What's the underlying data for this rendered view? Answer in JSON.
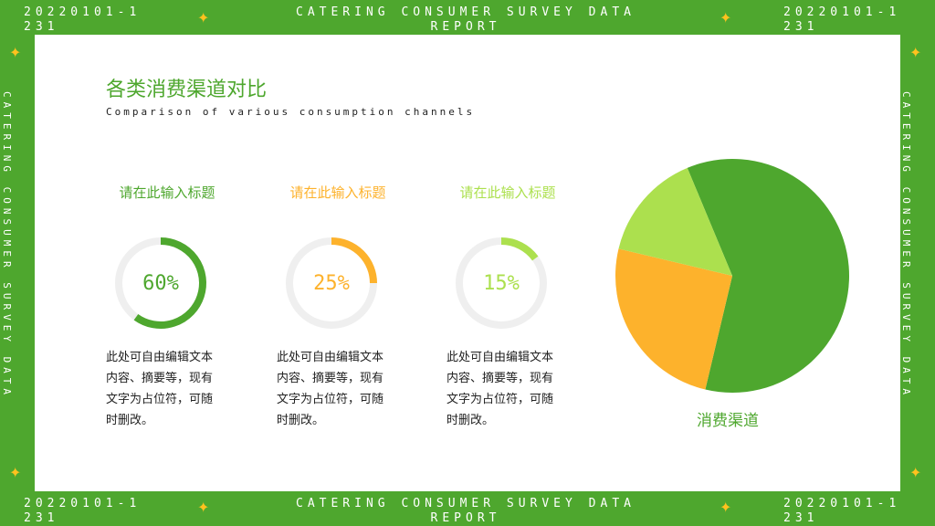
{
  "frame": {
    "date_range": "20220101-1231",
    "report_title": "CATERING CONSUMER SURVEY DATA REPORT",
    "side_text": "CATERING CONSUMER SURVEY DATA"
  },
  "header": {
    "title": "各类消费渠道对比",
    "subtitle": "Comparison of various consumption channels"
  },
  "cards": [
    {
      "title": "请在此输入标题",
      "percent_label": "60%",
      "value": 60,
      "color": "#4ea72e",
      "text": "此处可自由编辑文本内容、摘要等，现有文字为占位符，可随时删改。"
    },
    {
      "title": "请在此输入标题",
      "percent_label": "25%",
      "value": 25,
      "color": "#fdb22c",
      "text": "此处可自由编辑文本内容、摘要等，现有文字为占位符，可随时删改。"
    },
    {
      "title": "请在此输入标题",
      "percent_label": "15%",
      "value": 15,
      "color": "#ace04e",
      "text": "此处可自由编辑文本内容、摘要等，现有文字为占位符，可随时删改。"
    }
  ],
  "chart_data": {
    "type": "pie",
    "title": "",
    "label": "消费渠道",
    "categories": [
      "",
      "",
      ""
    ],
    "values": [
      60,
      25,
      15
    ],
    "colors": [
      "#4ea72e",
      "#fdb22c",
      "#ace04e"
    ]
  },
  "colors": {
    "primary": "#4ea72e",
    "orange": "#fdb22c",
    "light_green": "#ace04e",
    "track": "#efefef",
    "star": "#ffc21e"
  }
}
